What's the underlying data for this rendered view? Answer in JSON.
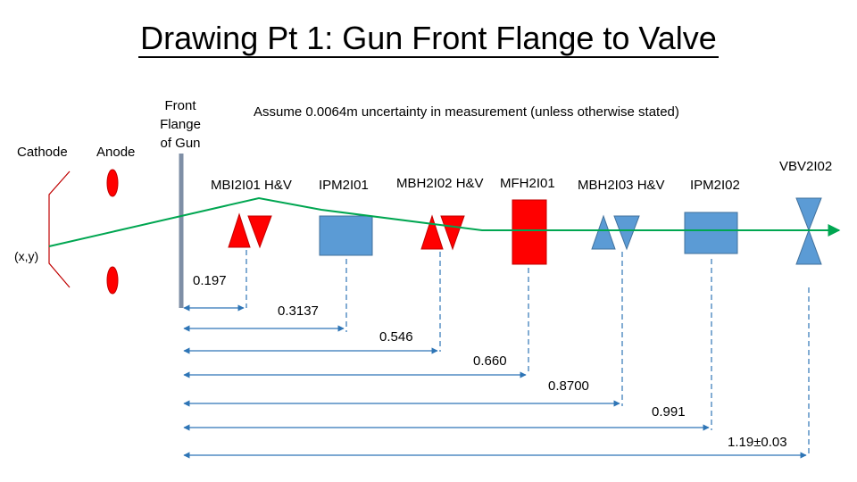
{
  "title": "Drawing Pt 1: Gun Front Flange to Valve",
  "note": "Assume 0.0064m uncertainty in measurement (unless otherwise stated)",
  "labels": {
    "cathode": "Cathode",
    "anode": "Anode",
    "front_flange": [
      "Front",
      "Flange",
      "of Gun"
    ],
    "xy": "(x,y)"
  },
  "components": [
    {
      "label": "MBI2I01 H&V",
      "kind": "steering-magnet",
      "color": "#ff0000"
    },
    {
      "label": "IPM2I01",
      "kind": "beam-position-monitor",
      "color": "#5b9bd5"
    },
    {
      "label": "MBH2I02 H&V",
      "kind": "steering-magnet",
      "color": "#ff0000"
    },
    {
      "label": "MFH2I01",
      "kind": "solenoid",
      "color": "#ff0000"
    },
    {
      "label": "MBH2I03 H&V",
      "kind": "steering-magnet",
      "color": "#5b9bd5"
    },
    {
      "label": "IPM2I02",
      "kind": "beam-position-monitor",
      "color": "#5b9bd5"
    },
    {
      "label": "VBV2I02",
      "kind": "valve",
      "color": "#5b9bd5"
    }
  ],
  "distances": [
    "0.197",
    "0.3137",
    "0.546",
    "0.660",
    "0.8700",
    "0.991",
    "1.19±0.03"
  ],
  "colors": {
    "beam": "#00a651",
    "magnet": "#ff0000",
    "monitor": "#5b9bd5",
    "cathode_lines": "#c00000"
  }
}
